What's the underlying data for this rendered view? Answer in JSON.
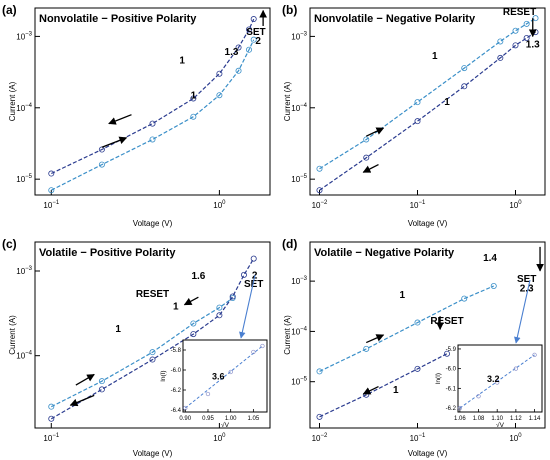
{
  "chart_data": [
    {
      "type": "scatter",
      "panel_label": "(a)",
      "title": "Nonvolatile − Positive Polarity",
      "xlabel": "Voltage (V)",
      "ylabel": "Current (A)",
      "xscale": "log",
      "yscale": "log",
      "xlim": [
        0.08,
        2.0
      ],
      "ylim": [
        6e-06,
        0.0025
      ],
      "xticks": [
        {
          "v": 0.1,
          "m": "10",
          "e": "−1"
        },
        {
          "v": 1,
          "m": "10",
          "e": "0"
        }
      ],
      "yticks": [
        {
          "v": 1e-05,
          "m": "10",
          "e": "−5"
        },
        {
          "v": 0.0001,
          "m": "10",
          "e": "−4"
        },
        {
          "v": 0.001,
          "m": "10",
          "e": "−3"
        }
      ],
      "series": [
        {
          "values": [
            [
              0.1,
              1.2e-05
            ],
            [
              0.2,
              2.6e-05
            ],
            [
              0.4,
              6e-05
            ],
            [
              0.7,
              0.000135
            ],
            [
              1.0,
              0.0003
            ],
            [
              1.3,
              0.0007
            ],
            [
              1.5,
              0.00125
            ],
            [
              1.6,
              0.00175
            ]
          ],
          "color": "#2a3b8f"
        },
        {
          "values": [
            [
              0.1,
              7e-06
            ],
            [
              0.2,
              1.6e-05
            ],
            [
              0.4,
              3.6e-05
            ],
            [
              0.7,
              7.5e-05
            ],
            [
              1.0,
              0.00015
            ],
            [
              1.3,
              0.00033
            ],
            [
              1.5,
              0.00065
            ],
            [
              1.6,
              0.0009
            ]
          ],
          "color": "#3a8fc8"
        }
      ],
      "annotations": [
        {
          "text": "1",
          "x": 0.6,
          "y": 0.00042
        },
        {
          "text": "1.3",
          "x": 1.18,
          "y": 0.00055
        },
        {
          "text": "1",
          "x": 0.7,
          "y": 0.000135
        },
        {
          "text": "SET",
          "x": 1.65,
          "y": 0.00105
        },
        {
          "text": "2",
          "x": 1.7,
          "y": 0.00078
        }
      ],
      "arrows": [
        {
          "from": [
            0.3,
            8e-05
          ],
          "to": [
            0.22,
            6e-05
          ]
        },
        {
          "from": [
            0.2,
            2.8e-05
          ],
          "to": [
            0.28,
            3.8e-05
          ]
        },
        {
          "from": [
            1.82,
            0.0014
          ],
          "to": [
            1.82,
            0.0023
          ]
        }
      ]
    },
    {
      "type": "scatter",
      "panel_label": "(b)",
      "title": "Nonvolatile − Negative Polarity",
      "xlabel": "Voltage (V)",
      "ylabel": "Current (A)",
      "xscale": "log",
      "yscale": "log",
      "xlim": [
        0.008,
        2.0
      ],
      "ylim": [
        6e-06,
        0.0025
      ],
      "xticks": [
        {
          "v": 0.01,
          "m": "10",
          "e": "−2"
        },
        {
          "v": 0.1,
          "m": "10",
          "e": "−1"
        },
        {
          "v": 1,
          "m": "10",
          "e": "0"
        }
      ],
      "yticks": [
        {
          "v": 1e-05,
          "m": "10",
          "e": "−5"
        },
        {
          "v": 0.0001,
          "m": "10",
          "e": "−4"
        },
        {
          "v": 0.001,
          "m": "10",
          "e": "−3"
        }
      ],
      "series": [
        {
          "values": [
            [
              0.01,
              1.4e-05
            ],
            [
              0.03,
              3.6e-05
            ],
            [
              0.1,
              0.00012
            ],
            [
              0.3,
              0.00036
            ],
            [
              0.7,
              0.00085
            ],
            [
              1.0,
              0.0012
            ],
            [
              1.3,
              0.0015
            ],
            [
              1.6,
              0.0018
            ]
          ],
          "color": "#3a8fc8"
        },
        {
          "values": [
            [
              0.01,
              7e-06
            ],
            [
              0.03,
              2e-05
            ],
            [
              0.1,
              6.5e-05
            ],
            [
              0.3,
              0.0002
            ],
            [
              0.7,
              0.0005
            ],
            [
              1.0,
              0.00075
            ],
            [
              1.3,
              0.00095
            ],
            [
              1.6,
              0.00115
            ]
          ],
          "color": "#2a3b8f"
        }
      ],
      "annotations": [
        {
          "text": "RESET",
          "x": 1.1,
          "y": 0.002
        },
        {
          "text": "1.3",
          "x": 1.5,
          "y": 0.0007
        },
        {
          "text": "1",
          "x": 0.15,
          "y": 0.00048
        },
        {
          "text": "1",
          "x": 0.2,
          "y": 0.00011
        }
      ],
      "arrows": [
        {
          "from": [
            0.03,
            4e-05
          ],
          "to": [
            0.045,
            5.2e-05
          ]
        },
        {
          "from": [
            0.04,
            1.6e-05
          ],
          "to": [
            0.028,
            1.25e-05
          ]
        },
        {
          "from": [
            1.5,
            0.0018
          ],
          "to": [
            1.5,
            0.001
          ]
        }
      ]
    },
    {
      "type": "scatter",
      "panel_label": "(c)",
      "title": "Volatile − Positive Polarity",
      "xlabel": "Voltage (V)",
      "ylabel": "Current (A)",
      "xscale": "log",
      "yscale": "log",
      "xlim": [
        0.08,
        2.0
      ],
      "ylim": [
        1.4e-05,
        0.0022
      ],
      "xticks": [
        {
          "v": 0.1,
          "m": "10",
          "e": "−1"
        },
        {
          "v": 1,
          "m": "10",
          "e": "0"
        }
      ],
      "yticks": [
        {
          "v": 0.0001,
          "m": "10",
          "e": "−4"
        },
        {
          "v": 0.001,
          "m": "10",
          "e": "−3"
        }
      ],
      "series": [
        {
          "values": [
            [
              0.1,
              2.5e-05
            ],
            [
              0.2,
              5e-05
            ],
            [
              0.4,
              0.00011
            ],
            [
              0.7,
              0.00024
            ],
            [
              1.0,
              0.00037
            ],
            [
              1.2,
              0.00048
            ]
          ],
          "color": "#3a8fc8"
        },
        {
          "values": [
            [
              0.1,
              1.8e-05
            ],
            [
              0.2,
              4e-05
            ],
            [
              0.4,
              9e-05
            ],
            [
              0.7,
              0.00018
            ],
            [
              1.0,
              0.0003
            ],
            [
              1.2,
              0.0005
            ],
            [
              1.4,
              0.0009
            ],
            [
              1.6,
              0.0014
            ]
          ],
          "color": "#2a3b8f"
        }
      ],
      "annotations": [
        {
          "text": "1.6",
          "x": 0.75,
          "y": 0.0008
        },
        {
          "text": "2",
          "x": 1.62,
          "y": 0.00082
        },
        {
          "text": "SET",
          "x": 1.6,
          "y": 0.00065
        },
        {
          "text": "RESET",
          "x": 0.4,
          "y": 0.00049
        },
        {
          "text": "1",
          "x": 0.55,
          "y": 0.00035
        },
        {
          "text": "1",
          "x": 0.25,
          "y": 0.00019
        }
      ],
      "arrows": [
        {
          "from": [
            0.14,
            4.5e-05
          ],
          "to": [
            0.18,
            6e-05
          ]
        },
        {
          "from": [
            0.18,
            3.4e-05
          ],
          "to": [
            0.13,
            2.6e-05
          ]
        },
        {
          "from": [
            0.75,
            0.00049
          ],
          "to": [
            0.62,
            0.0004
          ]
        }
      ],
      "inset": {
        "xlabel": "√V",
        "ylabel": "ln(I)",
        "xlim": [
          0.895,
          1.08
        ],
        "ylim": [
          -6.42,
          -5.7
        ],
        "xticks": [
          0.9,
          0.95,
          1.0,
          1.05
        ],
        "yticks": [
          -6.4,
          -6.2,
          -6.0,
          -5.8
        ],
        "values": [
          [
            0.9,
            -6.38
          ],
          [
            0.95,
            -6.24
          ],
          [
            1.0,
            -6.02
          ],
          [
            1.05,
            -5.82
          ],
          [
            1.07,
            -5.76
          ]
        ],
        "annotation": "3.6"
      }
    },
    {
      "type": "scatter",
      "panel_label": "(d)",
      "title": "Volatile − Negative Polarity",
      "xlabel": "Voltage (V)",
      "ylabel": "Current (A)",
      "xscale": "log",
      "yscale": "log",
      "xlim": [
        0.008,
        2.0
      ],
      "ylim": [
        1.2e-06,
        0.006
      ],
      "xticks": [
        {
          "v": 0.01,
          "m": "10",
          "e": "−2"
        },
        {
          "v": 0.1,
          "m": "10",
          "e": "−1"
        },
        {
          "v": 1,
          "m": "10",
          "e": "0"
        }
      ],
      "yticks": [
        {
          "v": 1e-05,
          "m": "10",
          "e": "−5"
        },
        {
          "v": 0.0001,
          "m": "10",
          "e": "−4"
        },
        {
          "v": 0.001,
          "m": "10",
          "e": "−3"
        }
      ],
      "series": [
        {
          "values": [
            [
              0.01,
              1.6e-05
            ],
            [
              0.03,
              4.5e-05
            ],
            [
              0.1,
              0.00015
            ],
            [
              0.3,
              0.00045
            ],
            [
              0.6,
              0.0008
            ]
          ],
          "color": "#3a8fc8"
        },
        {
          "values": [
            [
              0.01,
              2e-06
            ],
            [
              0.03,
              5.5e-06
            ],
            [
              0.1,
              1.8e-05
            ],
            [
              0.2,
              3.6e-05
            ]
          ],
          "color": "#2a3b8f"
        }
      ],
      "annotations": [
        {
          "text": "1.4",
          "x": 0.55,
          "y": 0.0025
        },
        {
          "text": "SET",
          "x": 1.3,
          "y": 0.00095
        },
        {
          "text": "2.3",
          "x": 1.3,
          "y": 0.00062
        },
        {
          "text": "RESET",
          "x": 0.2,
          "y": 0.00014
        },
        {
          "text": "1",
          "x": 0.07,
          "y": 0.00046
        },
        {
          "text": "1",
          "x": 0.06,
          "y": 6e-06
        }
      ],
      "arrows": [
        {
          "from": [
            0.03,
            6e-05
          ],
          "to": [
            0.045,
            8.5e-05
          ]
        },
        {
          "from": [
            0.04,
            8e-06
          ],
          "to": [
            0.028,
            5.7e-06
          ]
        },
        {
          "from": [
            0.17,
            0.0002
          ],
          "to": [
            0.17,
            0.00011
          ]
        },
        {
          "from": [
            1.78,
            0.0048
          ],
          "to": [
            1.78,
            0.0016
          ]
        }
      ],
      "inset": {
        "xlabel": "√V",
        "ylabel": "ln(I)",
        "xlim": [
          1.058,
          1.148
        ],
        "ylim": [
          -6.22,
          -5.88
        ],
        "xticks": [
          1.06,
          1.08,
          1.1,
          1.12,
          1.14
        ],
        "yticks": [
          -6.2,
          -6.1,
          -6.0,
          -5.9
        ],
        "values": [
          [
            1.06,
            -6.2
          ],
          [
            1.08,
            -6.14
          ],
          [
            1.1,
            -6.07
          ],
          [
            1.12,
            -6.0
          ],
          [
            1.14,
            -5.93
          ]
        ],
        "annotation": "3.2"
      }
    }
  ]
}
